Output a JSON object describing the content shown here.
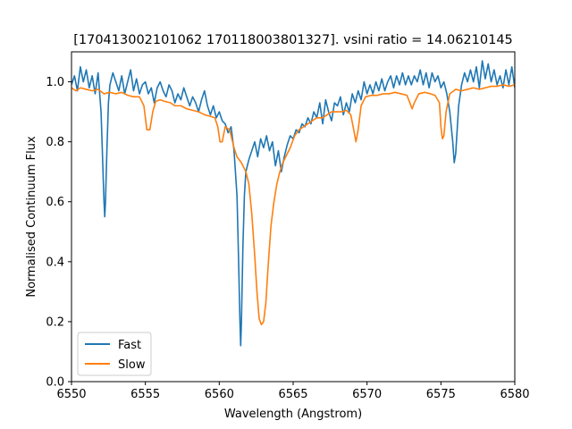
{
  "chart_data": {
    "type": "line",
    "title": "[170413002101062 170118003801327]. vsini ratio = 14.06210145",
    "xlabel": "Wavelength (Angstrom)",
    "ylabel": "Normalised Continuum Flux",
    "xlim": [
      6550,
      6580
    ],
    "ylim": [
      0.0,
      1.1
    ],
    "xticks": [
      6550,
      6555,
      6560,
      6565,
      6570,
      6575,
      6580
    ],
    "xtick_labels": [
      "6550",
      "6555",
      "6560",
      "6565",
      "6570",
      "6575",
      "6580"
    ],
    "yticks": [
      0.0,
      0.2,
      0.4,
      0.6,
      0.8,
      1.0
    ],
    "ytick_labels": [
      "0.0",
      "0.2",
      "0.4",
      "0.6",
      "0.8",
      "1.0"
    ],
    "grid": false,
    "legend_position": "lower-left",
    "series": [
      {
        "name": "Fast",
        "color": "#1f77b4",
        "points": [
          [
            6550.0,
            0.99
          ],
          [
            6550.2,
            1.02
          ],
          [
            6550.4,
            0.97
          ],
          [
            6550.6,
            1.05
          ],
          [
            6550.8,
            1.0
          ],
          [
            6551.0,
            1.04
          ],
          [
            6551.2,
            0.98
          ],
          [
            6551.4,
            1.02
          ],
          [
            6551.6,
            0.96
          ],
          [
            6551.8,
            1.03
          ],
          [
            6552.0,
            0.9
          ],
          [
            6552.1,
            0.75
          ],
          [
            6552.2,
            0.6
          ],
          [
            6552.25,
            0.55
          ],
          [
            6552.3,
            0.6
          ],
          [
            6552.4,
            0.78
          ],
          [
            6552.5,
            0.93
          ],
          [
            6552.6,
            0.99
          ],
          [
            6552.8,
            1.03
          ],
          [
            6553.0,
            1.0
          ],
          [
            6553.2,
            0.97
          ],
          [
            6553.4,
            1.02
          ],
          [
            6553.6,
            0.96
          ],
          [
            6553.8,
            1.0
          ],
          [
            6554.0,
            1.04
          ],
          [
            6554.2,
            0.97
          ],
          [
            6554.4,
            1.01
          ],
          [
            6554.6,
            0.96
          ],
          [
            6554.8,
            0.99
          ],
          [
            6555.0,
            1.0
          ],
          [
            6555.2,
            0.96
          ],
          [
            6555.4,
            0.98
          ],
          [
            6555.6,
            0.93
          ],
          [
            6555.8,
            0.98
          ],
          [
            6556.0,
            1.0
          ],
          [
            6556.2,
            0.97
          ],
          [
            6556.4,
            0.95
          ],
          [
            6556.6,
            0.99
          ],
          [
            6556.8,
            0.97
          ],
          [
            6557.0,
            0.93
          ],
          [
            6557.2,
            0.96
          ],
          [
            6557.4,
            0.94
          ],
          [
            6557.6,
            0.98
          ],
          [
            6557.8,
            0.95
          ],
          [
            6558.0,
            0.92
          ],
          [
            6558.2,
            0.95
          ],
          [
            6558.4,
            0.93
          ],
          [
            6558.6,
            0.9
          ],
          [
            6558.8,
            0.94
          ],
          [
            6559.0,
            0.97
          ],
          [
            6559.2,
            0.92
          ],
          [
            6559.4,
            0.89
          ],
          [
            6559.6,
            0.92
          ],
          [
            6559.8,
            0.88
          ],
          [
            6560.0,
            0.9
          ],
          [
            6560.2,
            0.87
          ],
          [
            6560.4,
            0.86
          ],
          [
            6560.6,
            0.83
          ],
          [
            6560.8,
            0.85
          ],
          [
            6561.0,
            0.77
          ],
          [
            6561.2,
            0.62
          ],
          [
            6561.3,
            0.42
          ],
          [
            6561.4,
            0.2
          ],
          [
            6561.45,
            0.12
          ],
          [
            6561.5,
            0.2
          ],
          [
            6561.6,
            0.45
          ],
          [
            6561.7,
            0.62
          ],
          [
            6561.8,
            0.7
          ],
          [
            6562.0,
            0.74
          ],
          [
            6562.2,
            0.77
          ],
          [
            6562.4,
            0.8
          ],
          [
            6562.6,
            0.75
          ],
          [
            6562.8,
            0.81
          ],
          [
            6563.0,
            0.78
          ],
          [
            6563.2,
            0.82
          ],
          [
            6563.4,
            0.77
          ],
          [
            6563.6,
            0.8
          ],
          [
            6563.8,
            0.72
          ],
          [
            6564.0,
            0.77
          ],
          [
            6564.2,
            0.7
          ],
          [
            6564.4,
            0.75
          ],
          [
            6564.6,
            0.79
          ],
          [
            6564.8,
            0.82
          ],
          [
            6565.0,
            0.81
          ],
          [
            6565.2,
            0.84
          ],
          [
            6565.4,
            0.83
          ],
          [
            6565.6,
            0.86
          ],
          [
            6565.8,
            0.85
          ],
          [
            6566.0,
            0.88
          ],
          [
            6566.2,
            0.86
          ],
          [
            6566.4,
            0.9
          ],
          [
            6566.6,
            0.88
          ],
          [
            6566.8,
            0.93
          ],
          [
            6567.0,
            0.86
          ],
          [
            6567.2,
            0.94
          ],
          [
            6567.4,
            0.9
          ],
          [
            6567.6,
            0.87
          ],
          [
            6567.8,
            0.93
          ],
          [
            6568.0,
            0.92
          ],
          [
            6568.2,
            0.95
          ],
          [
            6568.4,
            0.89
          ],
          [
            6568.6,
            0.93
          ],
          [
            6568.8,
            0.9
          ],
          [
            6569.0,
            0.96
          ],
          [
            6569.2,
            0.93
          ],
          [
            6569.4,
            0.97
          ],
          [
            6569.6,
            0.94
          ],
          [
            6569.8,
            1.0
          ],
          [
            6570.0,
            0.96
          ],
          [
            6570.2,
            0.99
          ],
          [
            6570.4,
            0.96
          ],
          [
            6570.6,
            1.0
          ],
          [
            6570.8,
            0.97
          ],
          [
            6571.0,
            1.01
          ],
          [
            6571.2,
            0.97
          ],
          [
            6571.4,
            1.0
          ],
          [
            6571.6,
            1.02
          ],
          [
            6571.8,
            0.98
          ],
          [
            6572.0,
            1.02
          ],
          [
            6572.2,
            0.99
          ],
          [
            6572.4,
            1.03
          ],
          [
            6572.6,
            0.99
          ],
          [
            6572.8,
            1.02
          ],
          [
            6573.0,
            0.99
          ],
          [
            6573.2,
            1.02
          ],
          [
            6573.4,
            1.0
          ],
          [
            6573.6,
            1.04
          ],
          [
            6573.8,
            0.99
          ],
          [
            6574.0,
            1.03
          ],
          [
            6574.2,
            0.98
          ],
          [
            6574.4,
            1.03
          ],
          [
            6574.6,
            1.0
          ],
          [
            6574.8,
            1.02
          ],
          [
            6575.0,
            0.98
          ],
          [
            6575.2,
            1.0
          ],
          [
            6575.4,
            0.96
          ],
          [
            6575.6,
            0.9
          ],
          [
            6575.8,
            0.8
          ],
          [
            6575.9,
            0.73
          ],
          [
            6576.0,
            0.76
          ],
          [
            6576.2,
            0.92
          ],
          [
            6576.4,
            0.99
          ],
          [
            6576.6,
            1.03
          ],
          [
            6576.8,
            1.0
          ],
          [
            6577.0,
            1.04
          ],
          [
            6577.2,
            1.0
          ],
          [
            6577.4,
            1.05
          ],
          [
            6577.6,
            0.98
          ],
          [
            6577.8,
            1.07
          ],
          [
            6578.0,
            1.01
          ],
          [
            6578.2,
            1.06
          ],
          [
            6578.4,
            1.0
          ],
          [
            6578.6,
            1.04
          ],
          [
            6578.8,
            0.99
          ],
          [
            6579.0,
            1.02
          ],
          [
            6579.2,
            0.98
          ],
          [
            6579.4,
            1.04
          ],
          [
            6579.6,
            0.99
          ],
          [
            6579.8,
            1.05
          ],
          [
            6580.0,
            0.98
          ]
        ]
      },
      {
        "name": "Slow",
        "color": "#ff7f0e",
        "points": [
          [
            6550.0,
            0.98
          ],
          [
            6550.3,
            0.97
          ],
          [
            6550.6,
            0.98
          ],
          [
            6551.0,
            0.975
          ],
          [
            6551.4,
            0.97
          ],
          [
            6551.8,
            0.975
          ],
          [
            6552.2,
            0.96
          ],
          [
            6552.6,
            0.965
          ],
          [
            6553.0,
            0.96
          ],
          [
            6553.4,
            0.965
          ],
          [
            6553.8,
            0.955
          ],
          [
            6554.2,
            0.95
          ],
          [
            6554.6,
            0.95
          ],
          [
            6554.9,
            0.92
          ],
          [
            6555.0,
            0.88
          ],
          [
            6555.1,
            0.84
          ],
          [
            6555.3,
            0.84
          ],
          [
            6555.5,
            0.9
          ],
          [
            6555.7,
            0.935
          ],
          [
            6556.0,
            0.94
          ],
          [
            6556.3,
            0.935
          ],
          [
            6556.7,
            0.93
          ],
          [
            6557.0,
            0.92
          ],
          [
            6557.4,
            0.92
          ],
          [
            6557.8,
            0.91
          ],
          [
            6558.2,
            0.905
          ],
          [
            6558.6,
            0.9
          ],
          [
            6559.0,
            0.89
          ],
          [
            6559.4,
            0.885
          ],
          [
            6559.7,
            0.88
          ],
          [
            6559.9,
            0.85
          ],
          [
            6560.05,
            0.8
          ],
          [
            6560.2,
            0.8
          ],
          [
            6560.4,
            0.85
          ],
          [
            6560.7,
            0.84
          ],
          [
            6561.0,
            0.78
          ],
          [
            6561.2,
            0.75
          ],
          [
            6561.5,
            0.73
          ],
          [
            6561.8,
            0.7
          ],
          [
            6562.0,
            0.66
          ],
          [
            6562.2,
            0.56
          ],
          [
            6562.4,
            0.42
          ],
          [
            6562.55,
            0.3
          ],
          [
            6562.7,
            0.21
          ],
          [
            6562.85,
            0.19
          ],
          [
            6563.0,
            0.2
          ],
          [
            6563.15,
            0.26
          ],
          [
            6563.3,
            0.38
          ],
          [
            6563.5,
            0.52
          ],
          [
            6563.7,
            0.6
          ],
          [
            6563.9,
            0.66
          ],
          [
            6564.1,
            0.7
          ],
          [
            6564.3,
            0.73
          ],
          [
            6564.5,
            0.75
          ],
          [
            6564.8,
            0.78
          ],
          [
            6565.1,
            0.82
          ],
          [
            6565.4,
            0.84
          ],
          [
            6565.7,
            0.85
          ],
          [
            6566.0,
            0.86
          ],
          [
            6566.3,
            0.87
          ],
          [
            6566.6,
            0.88
          ],
          [
            6567.0,
            0.88
          ],
          [
            6567.3,
            0.89
          ],
          [
            6567.6,
            0.9
          ],
          [
            6568.0,
            0.9
          ],
          [
            6568.3,
            0.9
          ],
          [
            6568.6,
            0.905
          ],
          [
            6568.9,
            0.89
          ],
          [
            6569.1,
            0.84
          ],
          [
            6569.25,
            0.8
          ],
          [
            6569.4,
            0.84
          ],
          [
            6569.6,
            0.92
          ],
          [
            6569.9,
            0.95
          ],
          [
            6570.3,
            0.955
          ],
          [
            6570.7,
            0.955
          ],
          [
            6571.1,
            0.96
          ],
          [
            6571.5,
            0.96
          ],
          [
            6571.9,
            0.965
          ],
          [
            6572.3,
            0.96
          ],
          [
            6572.7,
            0.955
          ],
          [
            6572.9,
            0.93
          ],
          [
            6573.05,
            0.91
          ],
          [
            6573.2,
            0.93
          ],
          [
            6573.5,
            0.96
          ],
          [
            6573.9,
            0.965
          ],
          [
            6574.3,
            0.96
          ],
          [
            6574.6,
            0.955
          ],
          [
            6574.9,
            0.93
          ],
          [
            6575.0,
            0.85
          ],
          [
            6575.1,
            0.81
          ],
          [
            6575.2,
            0.82
          ],
          [
            6575.35,
            0.9
          ],
          [
            6575.6,
            0.96
          ],
          [
            6576.0,
            0.975
          ],
          [
            6576.4,
            0.97
          ],
          [
            6576.8,
            0.975
          ],
          [
            6577.2,
            0.98
          ],
          [
            6577.6,
            0.975
          ],
          [
            6578.0,
            0.98
          ],
          [
            6578.4,
            0.985
          ],
          [
            6578.8,
            0.985
          ],
          [
            6579.2,
            0.99
          ],
          [
            6579.6,
            0.985
          ],
          [
            6580.0,
            0.99
          ]
        ]
      }
    ]
  }
}
